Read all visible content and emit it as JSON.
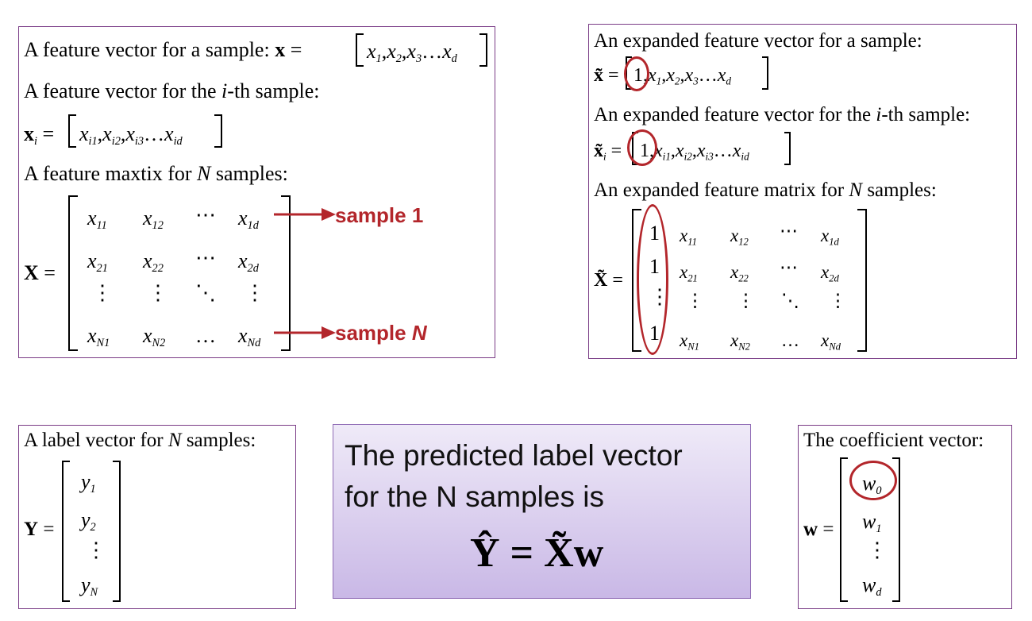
{
  "panel1": {
    "l1_text": "A feature vector for a sample: ",
    "l2_text": "A feature vector for the ",
    "l2_i": "i",
    "l2_rest": "-th sample:",
    "l4_text": "A feature maxtix for ",
    "N": "N",
    "samples": " samples:",
    "x_bold": "x",
    "X_bold": "X",
    "eq": " = ",
    "vec_x": [
      "x",
      "x",
      "x",
      "x"
    ],
    "vec_x_subs": [
      "1",
      "2",
      "3",
      "d"
    ],
    "vec_xi_subs": [
      "i1",
      "i2",
      "i3",
      "id"
    ],
    "sep": ",",
    "dots": "…",
    "matrix": [
      [
        "x",
        "x",
        "⋯",
        "x"
      ],
      [
        "x",
        "x",
        "⋯",
        "x"
      ],
      [
        "⋮",
        "⋮",
        "⋱",
        "⋮"
      ],
      [
        "x",
        "x",
        "…",
        "x"
      ]
    ],
    "matrix_subs": [
      [
        "11",
        "12",
        "",
        "1d"
      ],
      [
        "21",
        "22",
        "",
        "2d"
      ],
      [
        "",
        "",
        "",
        ""
      ],
      [
        "N1",
        "N2",
        "",
        "Nd"
      ]
    ],
    "sample1": "sample 1",
    "sampleN_prefix": "sample ",
    "sampleN_N": "N"
  },
  "panel2": {
    "l1": "An expanded feature vector for a sample:",
    "l3": "An expanded feature vector for the ",
    "l3_i": "i",
    "l3_rest": "-th sample:",
    "l5": "An expanded feature matrix for ",
    "N": "N",
    "samples": " samples:",
    "xt": "x̃",
    "Xt": "X̃",
    "one": "1",
    "col1": [
      "1",
      "1",
      "⋮",
      "1"
    ]
  },
  "panel3": {
    "title": "A label vector for ",
    "N": "N",
    "samples": " samples:",
    "Y": "Y",
    "y": [
      "y",
      "y",
      "⋮",
      "y"
    ],
    "y_subs": [
      "1",
      "2",
      "",
      "N"
    ]
  },
  "center": {
    "line1": "The predicted label vector",
    "line2": "for the N samples is",
    "formula": "Ŷ = X̃w"
  },
  "panel4": {
    "title": "The coefficient vector:",
    "w_bold": "w",
    "w": [
      "w",
      "w",
      "⋮",
      "w"
    ],
    "w_subs": [
      "0",
      "1",
      "",
      "d"
    ]
  },
  "colors": {
    "border": "#7a3c86",
    "red": "#b3262b",
    "purple_top": "#efeaf8",
    "purple_bottom": "#c9b8e6"
  }
}
